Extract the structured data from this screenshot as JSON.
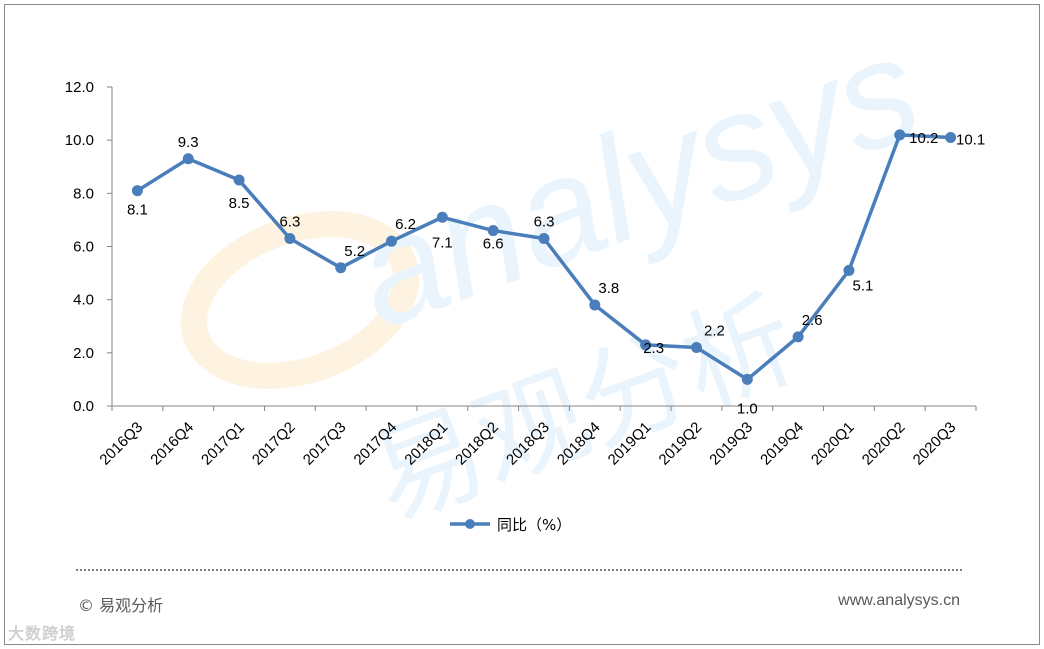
{
  "chart_data": {
    "type": "line",
    "categories": [
      "2016Q3",
      "2016Q4",
      "2017Q1",
      "2017Q2",
      "2017Q3",
      "2017Q4",
      "2018Q1",
      "2018Q2",
      "2018Q3",
      "2018Q4",
      "2019Q1",
      "2019Q2",
      "2019Q3",
      "2019Q4",
      "2020Q1",
      "2020Q2",
      "2020Q3"
    ],
    "series": [
      {
        "name": "同比（%）",
        "values": [
          8.1,
          9.3,
          8.5,
          6.3,
          5.2,
          6.2,
          7.1,
          6.6,
          6.3,
          3.8,
          2.3,
          2.2,
          1.0,
          2.6,
          5.1,
          10.2,
          10.1
        ]
      }
    ],
    "data_labels": [
      "8.1",
      "9.3",
      "8.5",
      "6.3",
      "5.2",
      "6.2",
      "7.1",
      "6.6",
      "6.3",
      "3.8",
      "2.3",
      "2.2",
      "1.0",
      "2.6",
      "5.1",
      "10.2",
      "10.1"
    ],
    "ylim": [
      0,
      12
    ],
    "yticks": [
      "0.0",
      "2.0",
      "4.0",
      "6.0",
      "8.0",
      "10.0",
      "12.0"
    ],
    "grid": false,
    "legend_position": "bottom",
    "series_color": "#4a7ebb"
  },
  "watermark": {
    "latin": "analysys",
    "cjk": "易观分析"
  },
  "footer": {
    "copyright": "© 易观分析",
    "website": "www.analysys.cn"
  },
  "corner_mark": "大数跨境"
}
